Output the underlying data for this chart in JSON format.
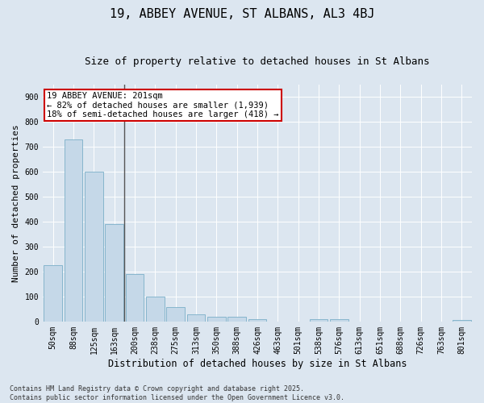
{
  "title_line1": "19, ABBEY AVENUE, ST ALBANS, AL3 4BJ",
  "title_line2": "Size of property relative to detached houses in St Albans",
  "xlabel": "Distribution of detached houses by size in St Albans",
  "ylabel": "Number of detached properties",
  "categories": [
    "50sqm",
    "88sqm",
    "125sqm",
    "163sqm",
    "200sqm",
    "238sqm",
    "275sqm",
    "313sqm",
    "350sqm",
    "388sqm",
    "426sqm",
    "463sqm",
    "501sqm",
    "538sqm",
    "576sqm",
    "613sqm",
    "651sqm",
    "688sqm",
    "726sqm",
    "763sqm",
    "801sqm"
  ],
  "values": [
    225,
    730,
    600,
    390,
    190,
    100,
    58,
    28,
    20,
    18,
    10,
    0,
    0,
    10,
    10,
    0,
    0,
    0,
    0,
    0,
    5
  ],
  "bar_color": "#c5d8e8",
  "bar_edge_color": "#7aafc8",
  "annotation_text": "19 ABBEY AVENUE: 201sqm\n← 82% of detached houses are smaller (1,939)\n18% of semi-detached houses are larger (418) →",
  "annotation_box_color": "#ffffff",
  "annotation_box_edge": "#cc0000",
  "vline_index": 4,
  "ylim": [
    0,
    950
  ],
  "yticks": [
    0,
    100,
    200,
    300,
    400,
    500,
    600,
    700,
    800,
    900
  ],
  "background_color": "#dce6f0",
  "footer_line1": "Contains HM Land Registry data © Crown copyright and database right 2025.",
  "footer_line2": "Contains public sector information licensed under the Open Government Licence v3.0.",
  "title_fontsize": 11,
  "subtitle_fontsize": 9,
  "xlabel_fontsize": 8.5,
  "ylabel_fontsize": 8,
  "tick_fontsize": 7,
  "annotation_fontsize": 7.5,
  "footer_fontsize": 6
}
